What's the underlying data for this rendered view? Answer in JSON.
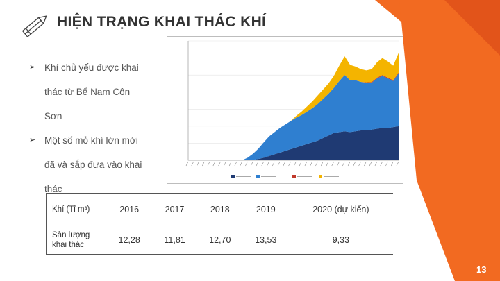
{
  "slide": {
    "title": "HIỆN TRẠNG KHAI THÁC KHÍ",
    "page_number": "13",
    "accent_color": "#f26a21"
  },
  "bullets": [
    {
      "icon": "arrow-bullet-icon",
      "line1": "Khí chủ yếu được khai",
      "line2": "thác từ Bể Nam Côn",
      "line3": "Sơn"
    },
    {
      "icon": "arrow-bullet-icon",
      "line1": "Một số mỏ khí lớn mới",
      "line2": "đã và sắp đưa vào khai",
      "line3": "thác"
    }
  ],
  "table": {
    "header": [
      "Khí (Tỉ m³)",
      "2016",
      "2017",
      "2018",
      "2019",
      "2020 (dự kiến)"
    ],
    "row": [
      "Sản lượng khai thác",
      "12,28",
      "11,81",
      "12,70",
      "13,53",
      "9,33"
    ]
  },
  "chart_data": {
    "type": "area",
    "stacked": true,
    "ylim": [
      0,
      14000
    ],
    "x": [
      "1991",
      "1992",
      "1993",
      "1994",
      "1995",
      "1996",
      "1997",
      "1998",
      "1999",
      "2000",
      "2001",
      "2002",
      "2003",
      "2004",
      "2005",
      "2006",
      "2007",
      "2008",
      "2009",
      "2010",
      "2011",
      "2012",
      "2013",
      "2014",
      "2015",
      "2016",
      "2017",
      "2018",
      "2019",
      "2020",
      "2021",
      "2022",
      "2023",
      "2024",
      "2025",
      "2026",
      "2027",
      "2028",
      "2029",
      "2030"
    ],
    "series": [
      {
        "color": "#1f3a73",
        "values": [
          0,
          0,
          0,
          0,
          0,
          0,
          0,
          0,
          0,
          0,
          0,
          0,
          50,
          150,
          300,
          500,
          700,
          900,
          1100,
          1300,
          1500,
          1700,
          1900,
          2100,
          2300,
          2600,
          2900,
          3200,
          3300,
          3400,
          3300,
          3400,
          3500,
          3500,
          3600,
          3700,
          3800,
          3800,
          3900,
          4000
        ]
      },
      {
        "color": "#2f7fd0",
        "values": [
          0,
          0,
          0,
          0,
          0,
          0,
          0,
          0,
          0,
          0,
          0,
          300,
          700,
          1200,
          1800,
          2300,
          2600,
          2900,
          3100,
          3300,
          3500,
          3600,
          3800,
          4000,
          4300,
          4600,
          4900,
          5300,
          6000,
          6600,
          6100,
          6000,
          5700,
          5600,
          5500,
          5900,
          6100,
          5800,
          5400,
          6200
        ]
      },
      {
        "color": "#c0392b",
        "values": [
          0,
          0,
          0,
          0,
          0,
          0,
          0,
          0,
          0,
          0,
          0,
          0,
          0,
          0,
          0,
          0,
          0,
          0,
          0,
          0,
          0,
          0,
          0,
          0,
          0,
          0,
          0,
          0,
          0,
          0,
          0,
          0,
          0,
          50,
          80,
          100,
          100,
          100,
          100,
          100
        ]
      },
      {
        "color": "#f4b400",
        "values": [
          0,
          0,
          0,
          0,
          0,
          0,
          0,
          0,
          0,
          0,
          0,
          0,
          0,
          0,
          0,
          0,
          0,
          0,
          0,
          0,
          200,
          400,
          600,
          800,
          1000,
          1100,
          1200,
          1400,
          1800,
          2200,
          1800,
          1600,
          1500,
          1400,
          1500,
          1800,
          2000,
          1900,
          1700,
          2300
        ]
      }
    ]
  }
}
